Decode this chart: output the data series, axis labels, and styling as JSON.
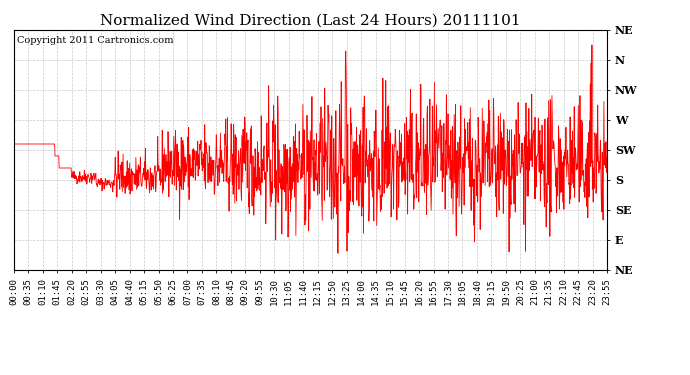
{
  "title": "Normalized Wind Direction (Last 24 Hours) 20111101",
  "copyright_text": "Copyright 2011 Cartronics.com",
  "background_color": "#ffffff",
  "line_color": "#ff0000",
  "grid_color": "#bbbbbb",
  "ytick_labels": [
    "NE",
    "N",
    "NW",
    "W",
    "SW",
    "S",
    "SE",
    "E",
    "NE"
  ],
  "ytick_values": [
    8,
    7,
    6,
    5,
    4,
    3,
    2,
    1,
    0
  ],
  "ylim": [
    0,
    8
  ],
  "title_fontsize": 11,
  "copyright_fontsize": 7,
  "tick_fontsize": 6.5,
  "xtick_labels": [
    "00:00",
    "00:35",
    "01:10",
    "01:45",
    "02:20",
    "02:55",
    "03:30",
    "04:05",
    "04:40",
    "05:15",
    "05:50",
    "06:25",
    "07:00",
    "07:35",
    "08:10",
    "08:45",
    "09:20",
    "09:55",
    "10:30",
    "11:05",
    "11:40",
    "12:15",
    "12:50",
    "13:25",
    "14:00",
    "14:35",
    "15:10",
    "15:45",
    "16:20",
    "16:55",
    "17:30",
    "18:05",
    "18:40",
    "19:15",
    "19:50",
    "20:25",
    "21:00",
    "21:35",
    "22:10",
    "22:45",
    "23:20",
    "23:55"
  ],
  "seed": 42,
  "n_points": 1440
}
